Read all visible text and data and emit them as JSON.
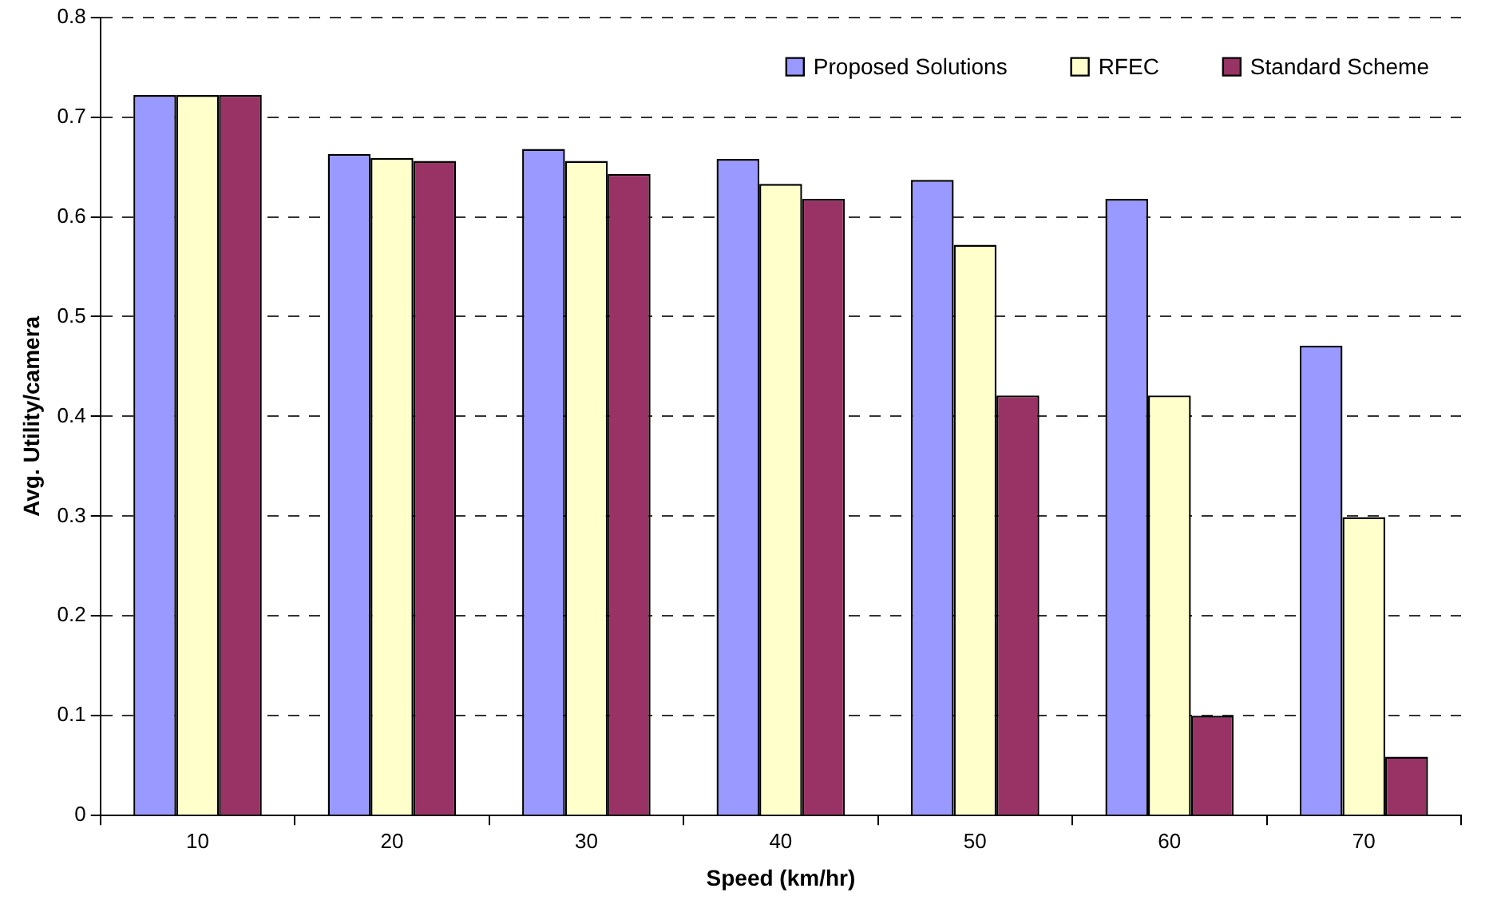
{
  "chart_data": {
    "type": "bar",
    "xlabel": "Speed (km/hr)",
    "ylabel": "Avg. Utility/camera",
    "categories": [
      "10",
      "20",
      "30",
      "40",
      "50",
      "60",
      "70"
    ],
    "series": [
      {
        "name": "Proposed Solutions",
        "color": "#9999ff",
        "values": [
          0.722,
          0.663,
          0.668,
          0.658,
          0.637,
          0.618,
          0.471
        ]
      },
      {
        "name": "RFEC",
        "color": "#ffffcc",
        "values": [
          0.722,
          0.659,
          0.656,
          0.633,
          0.572,
          0.421,
          0.299
        ]
      },
      {
        "name": "Standard Scheme",
        "color": "#993366",
        "values": [
          0.722,
          0.656,
          0.643,
          0.618,
          0.421,
          0.1,
          0.059
        ]
      }
    ],
    "ylim": [
      0,
      0.8
    ],
    "yticks": [
      0,
      0.1,
      0.2,
      0.3,
      0.4,
      0.5,
      0.6,
      0.7,
      0.8
    ],
    "grid": "y",
    "legend": "top right"
  }
}
